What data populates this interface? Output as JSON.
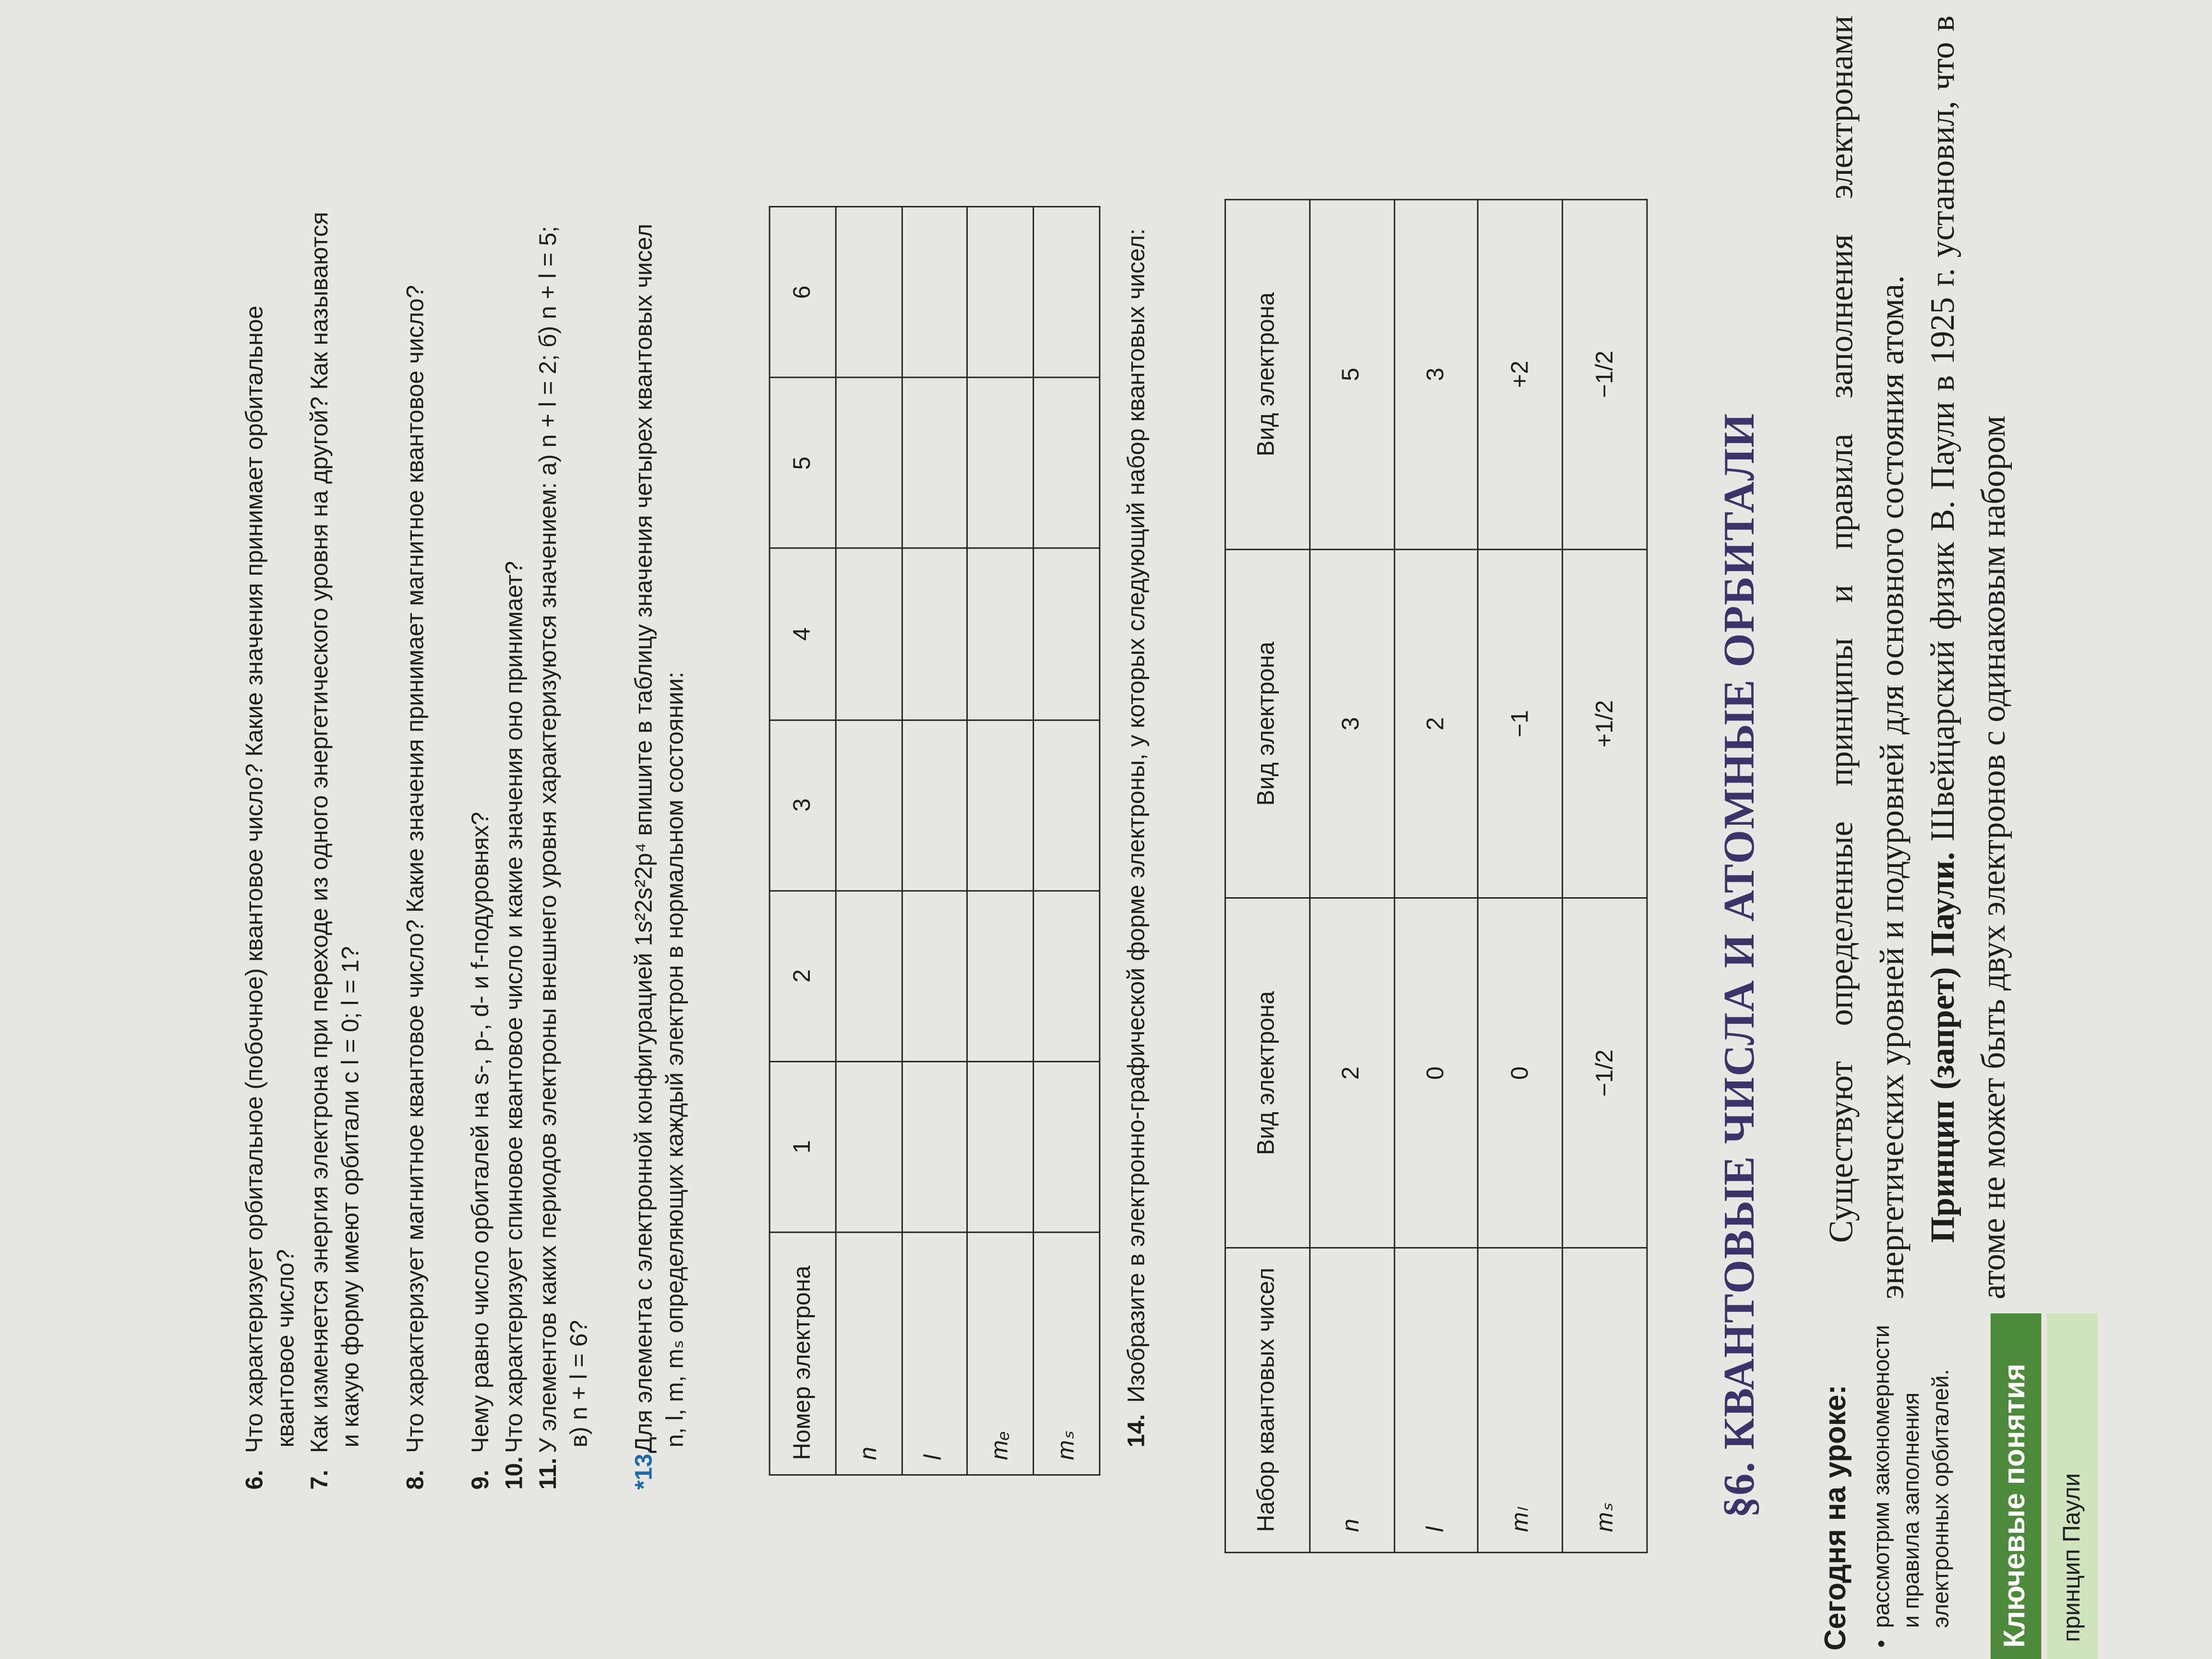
{
  "questions": [
    {
      "num": "6.",
      "text": "Что характеризует орбитальное (побочное) квантовое число? Какие значения принимает орбитальное квантовое число?"
    },
    {
      "num": "7.",
      "text": "Как изменяется энергия электрона при переходе из одного энергетического уровня на другой? Как называются и какую форму имеют орбитали с l = 0; l = 1?"
    },
    {
      "num": "8.",
      "text": "Что характеризует магнитное квантовое число? Какие значения принимает магнитное квантовое число?"
    },
    {
      "num": "9.",
      "text": "Чему равно число орбиталей на s-, p-, d- и f-подуровнях?"
    },
    {
      "num": "10.",
      "text": "Что характеризует спиновое квантовое число и какие значения оно принимает?"
    },
    {
      "num": "11.",
      "text": "У элементов каких периодов электроны внешнего уровня характеризуются значением: а) n + l = 2;   б) n + l = 5;   в) n + l = 6?"
    },
    {
      "num": "*13.",
      "text": "Для элемента с электронной конфигурацией 1s²2s²2p⁴ впишите в таблицу значения четырех квантовых чисел n, l, m, mₛ определяющих каждый электрон в нормальном состоянии:"
    }
  ],
  "table13": {
    "header": [
      "Номер электрона",
      "1",
      "2",
      "3",
      "4",
      "5",
      "6"
    ],
    "rows": [
      "n",
      "l",
      "mₑ",
      "mₛ"
    ]
  },
  "q14": {
    "num": "14.",
    "text": "Изобразите в электронно-графической форме электроны, у которых следующий набор квантовых чисел:"
  },
  "table14": {
    "header": [
      "Набор квантовых чисел",
      "Вид электрона",
      "Вид электрона",
      "Вид электрона"
    ],
    "rows": [
      [
        "n",
        "2",
        "3",
        "5"
      ],
      [
        "l",
        "0",
        "2",
        "3"
      ],
      [
        "mₗ",
        "0",
        "−1",
        "+2"
      ],
      [
        "mₛ",
        "−1/2",
        "+1/2",
        "−1/2"
      ]
    ]
  },
  "section_title": "§6. КВАНТОВЫЕ ЧИСЛА И АТОМНЫЕ ОРБИТАЛИ",
  "sidebar": {
    "heading": "Сегодня на уроке:",
    "bullet": "рассмотрим закономерности и правила заполнения электронных орбиталей.",
    "key_heading": "Ключевые понятия",
    "key_item": "принцип Паули"
  },
  "main": {
    "p1": "Существуют определенные принципы и правила заполнения электронами энергетических уровней и подуровней для основного состояния атома.",
    "p2_bold": "Принцип (запрет) Паули.",
    "p2": " Швейцарский физик В. Паули в 1925 г. установил, что в атоме не может быть двух электронов с одинаковым набором"
  }
}
